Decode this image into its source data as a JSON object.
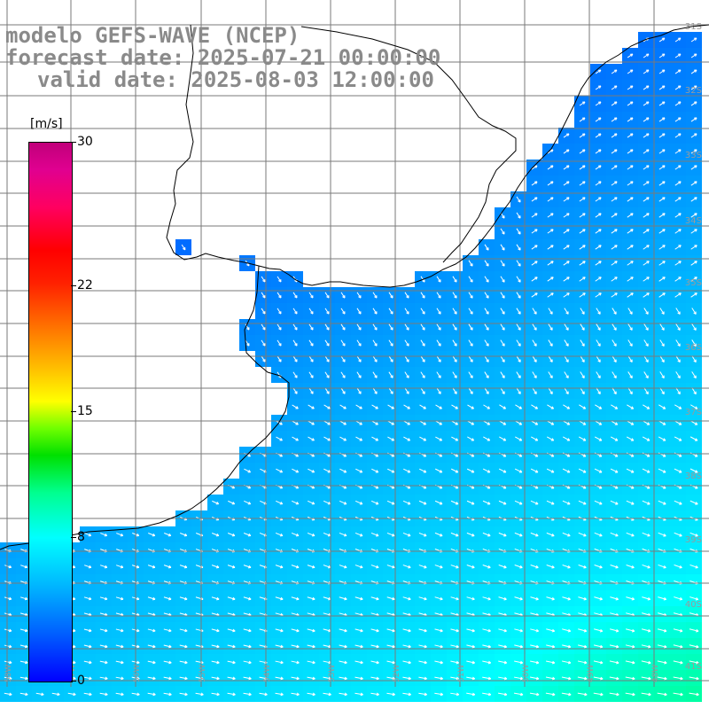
{
  "title": {
    "line1": "modelo GEFS-WAVE (NCEP)",
    "line2": "forecast date: 2025-07-21 00:00:00",
    "line3": "valid date: 2025-08-03 12:00:00"
  },
  "colorbar": {
    "unit": "[m/s]",
    "ticks": [
      "30",
      "22",
      "15",
      "8",
      "0"
    ],
    "tick_values": [
      30,
      22,
      15,
      8,
      0
    ],
    "min": 0,
    "max": 30,
    "colors": [
      "#0000ff",
      "#00b8ff",
      "#00ffff",
      "#00ff90",
      "#00e000",
      "#ffff00",
      "#ff7000",
      "#ff0000",
      "#c0007a"
    ]
  },
  "latitude_labels": [
    "31S",
    "32S",
    "33S",
    "34S",
    "35S",
    "36S",
    "37S",
    "38S",
    "39S",
    "40S",
    "41S"
  ],
  "longitude_labels": [
    "58W",
    "57W",
    "56W",
    "55W",
    "54W",
    "53W",
    "52W",
    "51W",
    "50W",
    "49W",
    "48W"
  ],
  "wind_field": {
    "units": "m/s",
    "color_scale_min": 0,
    "color_scale_max": 30,
    "typical_speed_north": 2,
    "typical_speed_south": 8,
    "arrow_color": "#ffffff",
    "land_color": "#ffffff",
    "grid_color": "#7a7a7a"
  }
}
